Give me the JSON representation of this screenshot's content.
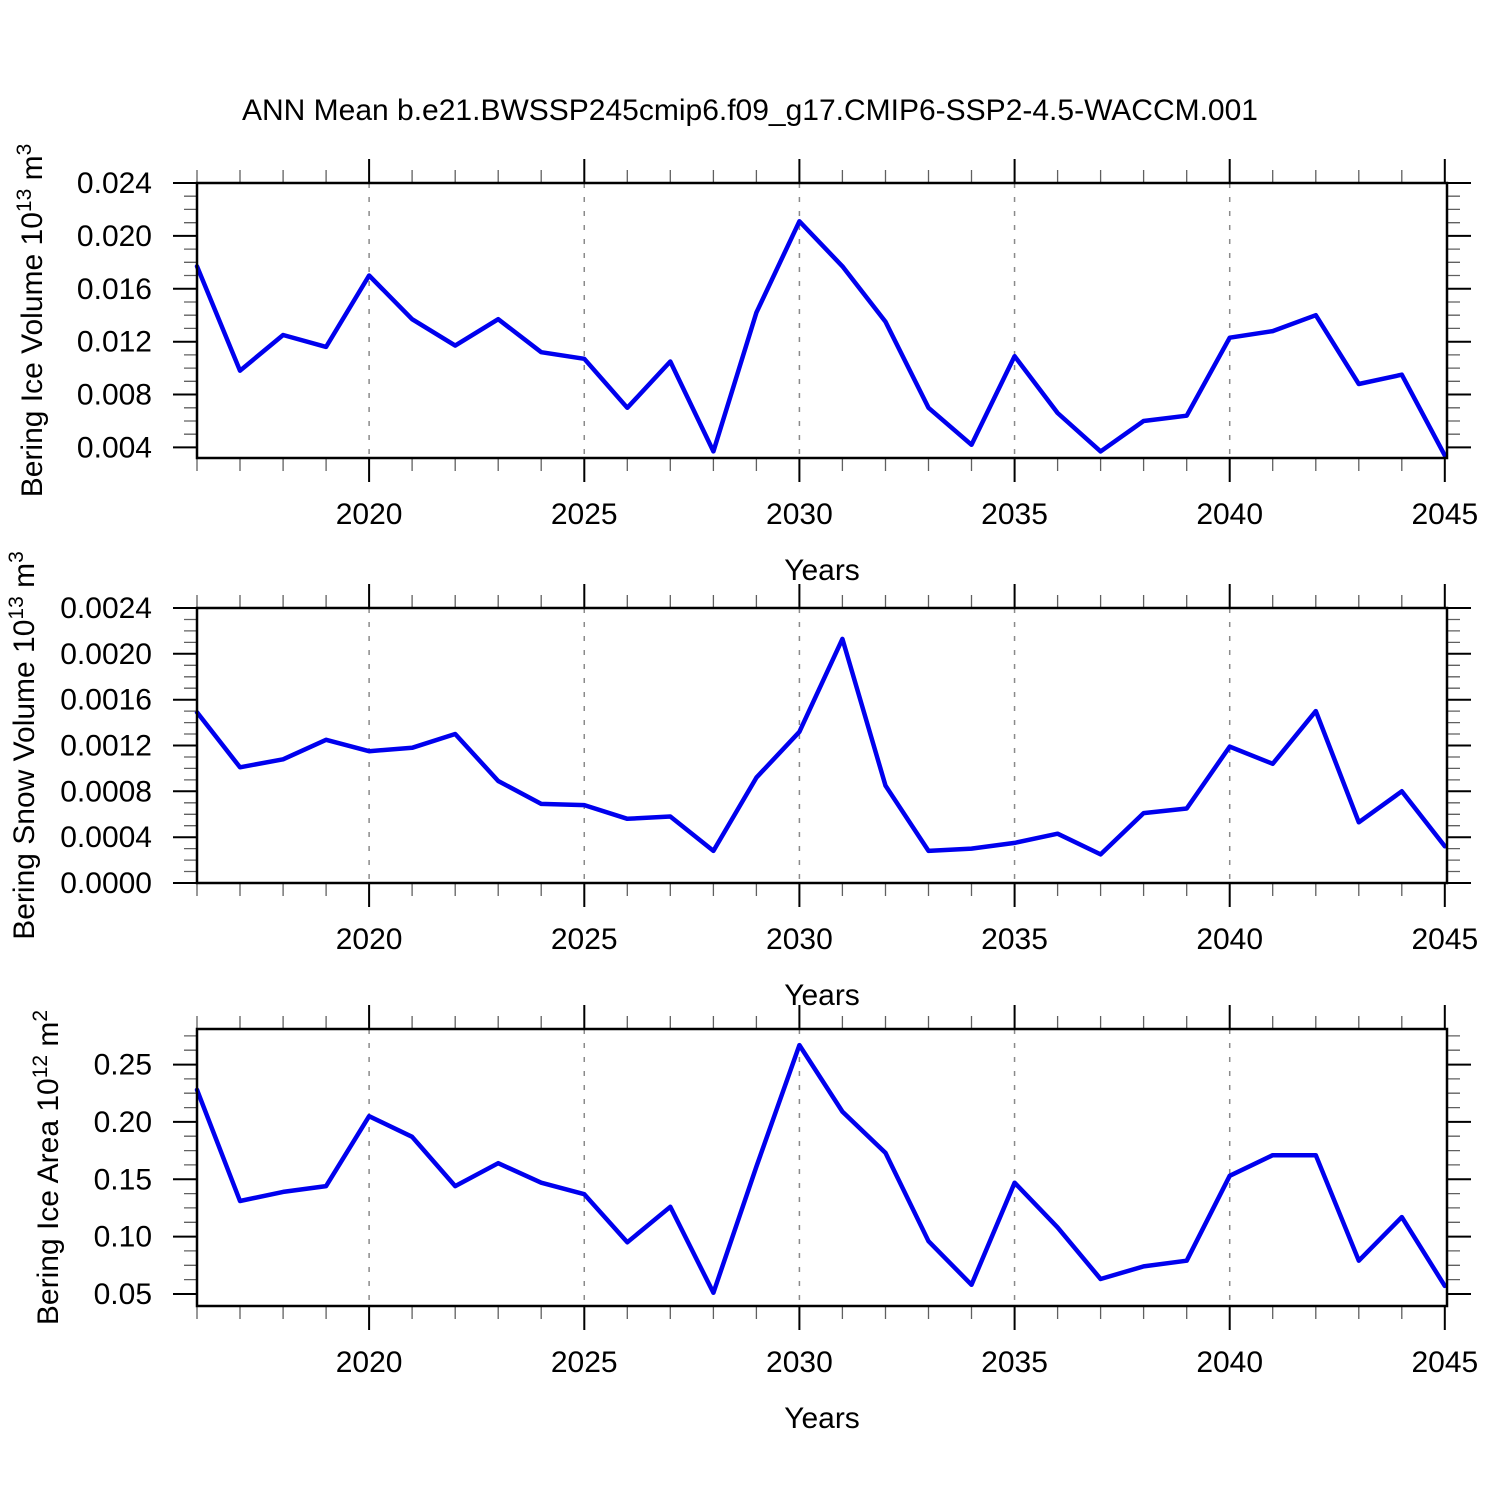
{
  "title": "ANN Mean b.e21.BWSSP245cmip6.f09_g17.CMIP6-SSP2-4.5-WACCM.001",
  "colors": {
    "line": "#0000ee",
    "grid": "#8a8a8a",
    "frame": "#000000",
    "major_tick": "#000000",
    "minor_tick": "#606060",
    "text": "#000000",
    "background": "#ffffff"
  },
  "chart_data": [
    {
      "id": "bering-ice-volume",
      "type": "line",
      "title": "",
      "xlabel": "Years",
      "ylabel": "Bering Ice Volume 10^13 m^3",
      "ylabel_parts": [
        {
          "text": "Bering Ice Volume 10",
          "sup": false
        },
        {
          "text": "13",
          "sup": true
        },
        {
          "text": " m",
          "sup": false
        },
        {
          "text": "3",
          "sup": true
        }
      ],
      "x": [
        2016,
        2017,
        2018,
        2019,
        2020,
        2021,
        2022,
        2023,
        2024,
        2025,
        2026,
        2027,
        2028,
        2029,
        2030,
        2031,
        2032,
        2033,
        2034,
        2035,
        2036,
        2037,
        2038,
        2039,
        2040,
        2041,
        2042,
        2043,
        2044,
        2045
      ],
      "values": [
        0.0177,
        0.0098,
        0.0125,
        0.0116,
        0.017,
        0.0137,
        0.0117,
        0.0137,
        0.0112,
        0.0107,
        0.007,
        0.0105,
        0.0037,
        0.0142,
        0.0211,
        0.0177,
        0.0135,
        0.007,
        0.0042,
        0.0109,
        0.0066,
        0.0037,
        0.006,
        0.0064,
        0.0123,
        0.0128,
        0.014,
        0.0088,
        0.0095,
        0.0034
      ],
      "xlim": [
        2016,
        2045.05
      ],
      "ylim": [
        0.0032,
        0.024
      ],
      "xtick_values": [
        2020,
        2025,
        2030,
        2035,
        2040,
        2045
      ],
      "xtick_labels": [
        "2020",
        "2025",
        "2030",
        "2035",
        "2040",
        "2045"
      ],
      "x_minor_step": 1,
      "ytick_values": [
        0.004,
        0.008,
        0.012,
        0.016,
        0.02,
        0.024
      ],
      "ytick_labels": [
        "0.004",
        "0.008",
        "0.012",
        "0.016",
        "0.020",
        "0.024"
      ],
      "y_minor_step": 0.001,
      "grid_x": [
        2020,
        2025,
        2030,
        2035,
        2040
      ],
      "grid": "vertical-dashed",
      "legend": "none"
    },
    {
      "id": "bering-snow-volume",
      "type": "line",
      "title": "",
      "xlabel": "Years",
      "ylabel": "Bering Snow Volume 10^13 m^3",
      "ylabel_parts": [
        {
          "text": "Bering Snow Volume 10",
          "sup": false
        },
        {
          "text": "13",
          "sup": true
        },
        {
          "text": " m",
          "sup": false
        },
        {
          "text": "3",
          "sup": true
        }
      ],
      "x": [
        2016,
        2017,
        2018,
        2019,
        2020,
        2021,
        2022,
        2023,
        2024,
        2025,
        2026,
        2027,
        2028,
        2029,
        2030,
        2031,
        2032,
        2033,
        2034,
        2035,
        2036,
        2037,
        2038,
        2039,
        2040,
        2041,
        2042,
        2043,
        2044,
        2045
      ],
      "values": [
        0.00149,
        0.00101,
        0.00108,
        0.00125,
        0.00115,
        0.00118,
        0.0013,
        0.00089,
        0.00069,
        0.00068,
        0.00056,
        0.00058,
        0.00028,
        0.00092,
        0.00132,
        0.00213,
        0.00085,
        0.00028,
        0.0003,
        0.00035,
        0.00043,
        0.00025,
        0.00061,
        0.00065,
        0.00119,
        0.00104,
        0.0015,
        0.00053,
        0.0008,
        0.00032
      ],
      "xlim": [
        2016,
        2045.05
      ],
      "ylim": [
        0.0,
        0.0024
      ],
      "xtick_values": [
        2020,
        2025,
        2030,
        2035,
        2040,
        2045
      ],
      "xtick_labels": [
        "2020",
        "2025",
        "2030",
        "2035",
        "2040",
        "2045"
      ],
      "x_minor_step": 1,
      "ytick_values": [
        0.0,
        0.0004,
        0.0008,
        0.0012,
        0.0016,
        0.002,
        0.0024
      ],
      "ytick_labels": [
        "0.0000",
        "0.0004",
        "0.0008",
        "0.0012",
        "0.0016",
        "0.0020",
        "0.0024"
      ],
      "y_minor_step": 0.0001,
      "grid_x": [
        2020,
        2025,
        2030,
        2035,
        2040
      ],
      "grid": "vertical-dashed",
      "legend": "none"
    },
    {
      "id": "bering-ice-area",
      "type": "line",
      "title": "",
      "xlabel": "Years",
      "ylabel": "Bering Ice Area 10^12 m^2",
      "ylabel_parts": [
        {
          "text": "Bering Ice Area 10",
          "sup": false
        },
        {
          "text": "12",
          "sup": true
        },
        {
          "text": " m",
          "sup": false
        },
        {
          "text": "2",
          "sup": true
        }
      ],
      "x": [
        2016,
        2017,
        2018,
        2019,
        2020,
        2021,
        2022,
        2023,
        2024,
        2025,
        2026,
        2027,
        2028,
        2029,
        2030,
        2031,
        2032,
        2033,
        2034,
        2035,
        2036,
        2037,
        2038,
        2039,
        2040,
        2041,
        2042,
        2043,
        2044,
        2045
      ],
      "values": [
        0.228,
        0.131,
        0.139,
        0.144,
        0.205,
        0.187,
        0.144,
        0.164,
        0.147,
        0.137,
        0.095,
        0.126,
        0.051,
        0.161,
        0.267,
        0.209,
        0.173,
        0.096,
        0.058,
        0.147,
        0.108,
        0.063,
        0.074,
        0.079,
        0.153,
        0.171,
        0.171,
        0.079,
        0.117,
        0.057
      ],
      "xlim": [
        2016,
        2045.05
      ],
      "ylim": [
        0.0395,
        0.281
      ],
      "xtick_values": [
        2020,
        2025,
        2030,
        2035,
        2040,
        2045
      ],
      "xtick_labels": [
        "2020",
        "2025",
        "2030",
        "2035",
        "2040",
        "2045"
      ],
      "x_minor_step": 1,
      "ytick_values": [
        0.05,
        0.1,
        0.15,
        0.2,
        0.25
      ],
      "ytick_labels": [
        "0.05",
        "0.10",
        "0.15",
        "0.20",
        "0.25"
      ],
      "y_minor_step": 0.0125,
      "grid_x": [
        2020,
        2025,
        2030,
        2035,
        2040
      ],
      "grid": "vertical-dashed",
      "legend": "none"
    }
  ]
}
